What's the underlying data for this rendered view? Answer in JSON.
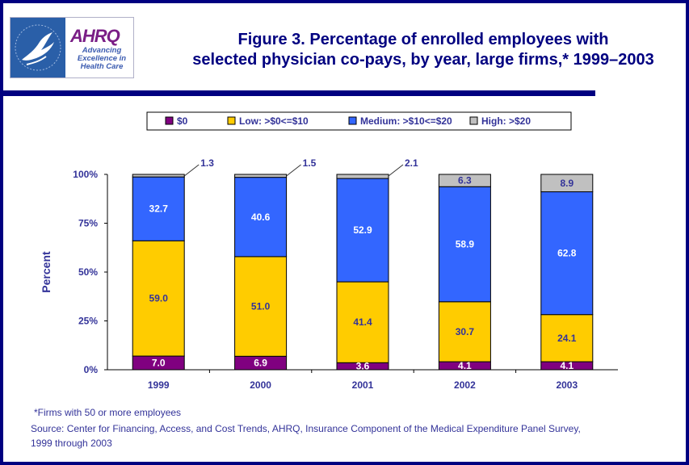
{
  "header": {
    "logo": {
      "agency_word": "AHRQ",
      "tagline_lines": [
        "Advancing",
        "Excellence in",
        "Health Care"
      ]
    },
    "title_lines": [
      "Figure 3. Percentage of enrolled employees with",
      "selected physician co-pays, by year, large firms,* 1999–2003"
    ]
  },
  "colors": {
    "frame": "#000080",
    "text": "#333399",
    "zero": "#800080",
    "low": "#ffcc00",
    "medium": "#3366ff",
    "high": "#c0c0c0"
  },
  "chart_data": {
    "type": "bar",
    "stacked": true,
    "title": "Figure 3. Percentage of enrolled employees with selected physician co-pays, by year, large firms,* 1999–2003",
    "xlabel": "",
    "ylabel": "Percent",
    "categories": [
      "1999",
      "2000",
      "2001",
      "2002",
      "2003"
    ],
    "ylim": [
      0,
      100
    ],
    "yticks": [
      "0%",
      "25%",
      "50%",
      "75%",
      "100%"
    ],
    "ytick_values": [
      0,
      25,
      50,
      75,
      100
    ],
    "legend_position": "top",
    "grid": false,
    "series": [
      {
        "name": "$0",
        "key": "zero",
        "values": [
          7.0,
          6.9,
          3.6,
          4.1,
          4.1
        ],
        "labels": [
          "7.0",
          "6.9",
          "3.6",
          "4.1",
          "4.1"
        ],
        "label_color": "#ffffff"
      },
      {
        "name": "Low: >$0<=$10",
        "key": "low",
        "values": [
          59.0,
          51.0,
          41.4,
          30.7,
          24.1
        ],
        "labels": [
          "59.0",
          "51.0",
          "41.4",
          "30.7",
          "24.1"
        ],
        "label_color": "#333399"
      },
      {
        "name": "Medium: >$10<=$20",
        "key": "medium",
        "values": [
          32.7,
          40.6,
          52.9,
          58.9,
          62.8
        ],
        "labels": [
          "32.7",
          "40.6",
          "52.9",
          "58.9",
          "62.8"
        ],
        "label_color": "#ffffff"
      },
      {
        "name": "High: >$20",
        "key": "high",
        "values": [
          1.3,
          1.5,
          2.1,
          6.3,
          8.9
        ],
        "labels": [
          "1.3",
          "1.5",
          "2.1",
          "6.3",
          "8.9"
        ],
        "label_color": "#333399",
        "callout_categories": [
          "1999",
          "2000",
          "2001"
        ]
      }
    ]
  },
  "footnote": "*Firms with 50 or more employees",
  "source_lines": [
    "Source: Center for Financing, Access, and Cost Trends, AHRQ, Insurance Component of the Medical Expenditure Panel Survey,",
    "1999 through 2003"
  ]
}
